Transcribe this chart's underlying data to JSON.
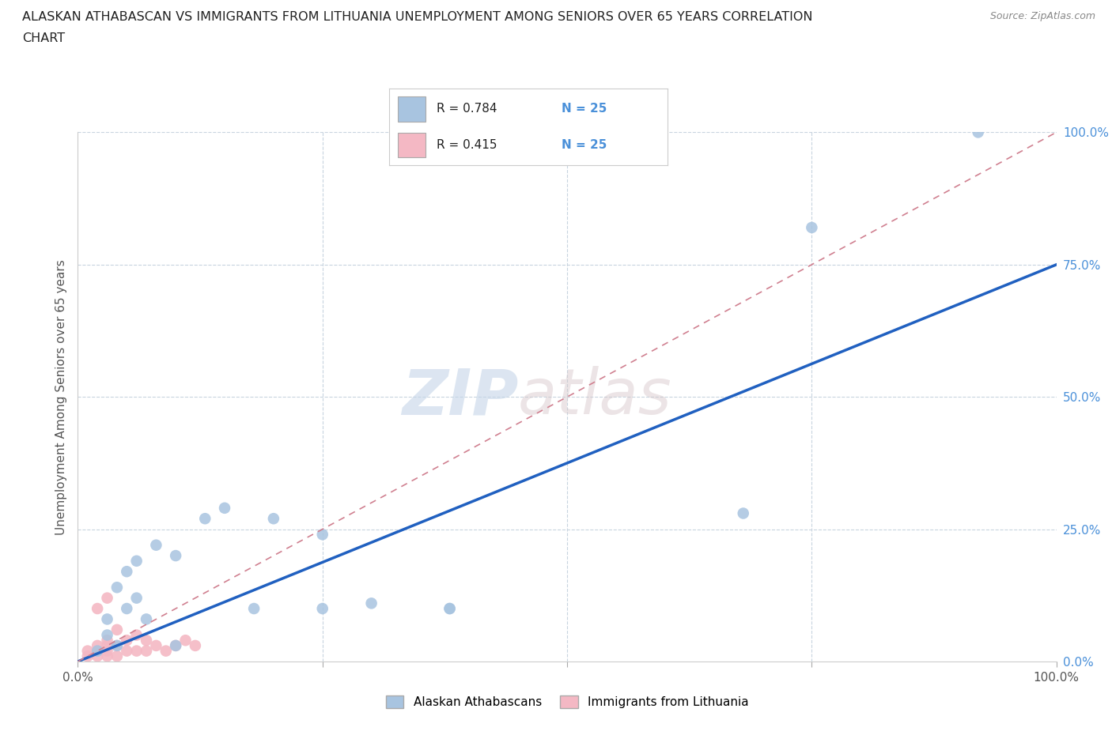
{
  "title_line1": "ALASKAN ATHABASCAN VS IMMIGRANTS FROM LITHUANIA UNEMPLOYMENT AMONG SENIORS OVER 65 YEARS CORRELATION",
  "title_line2": "CHART",
  "source": "Source: ZipAtlas.com",
  "ylabel": "Unemployment Among Seniors over 65 years",
  "y_tick_labels": [
    "0.0%",
    "25.0%",
    "50.0%",
    "75.0%",
    "100.0%"
  ],
  "y_tick_values": [
    0,
    0.25,
    0.5,
    0.75,
    1.0
  ],
  "xlim": [
    0,
    1.0
  ],
  "ylim": [
    0,
    1.0
  ],
  "blue_color": "#a8c4e0",
  "pink_color": "#f4b8c4",
  "blue_line_color": "#2060c0",
  "pink_line_color": "#d08090",
  "watermark_zip": "ZIP",
  "watermark_atlas": "atlas",
  "legend_R1": "R = 0.784",
  "legend_N1": "N = 25",
  "legend_R2": "R = 0.415",
  "legend_N2": "N = 25",
  "legend_label1": "Alaskan Athabascans",
  "legend_label2": "Immigrants from Lithuania",
  "blue_scatter_x": [
    0.02,
    0.03,
    0.03,
    0.04,
    0.04,
    0.05,
    0.05,
    0.06,
    0.06,
    0.07,
    0.08,
    0.1,
    0.1,
    0.13,
    0.15,
    0.18,
    0.2,
    0.25,
    0.25,
    0.3,
    0.38,
    0.38,
    0.68,
    0.75,
    0.92
  ],
  "blue_scatter_y": [
    0.02,
    0.05,
    0.08,
    0.03,
    0.14,
    0.1,
    0.17,
    0.12,
    0.19,
    0.08,
    0.22,
    0.03,
    0.2,
    0.27,
    0.29,
    0.1,
    0.27,
    0.24,
    0.1,
    0.11,
    0.1,
    0.1,
    0.28,
    0.82,
    1.0
  ],
  "pink_scatter_x": [
    0.01,
    0.01,
    0.02,
    0.02,
    0.02,
    0.02,
    0.03,
    0.03,
    0.03,
    0.03,
    0.03,
    0.04,
    0.04,
    0.04,
    0.05,
    0.05,
    0.06,
    0.06,
    0.07,
    0.07,
    0.08,
    0.09,
    0.1,
    0.11,
    0.12
  ],
  "pink_scatter_y": [
    0.01,
    0.02,
    0.01,
    0.02,
    0.03,
    0.1,
    0.01,
    0.02,
    0.03,
    0.04,
    0.12,
    0.01,
    0.03,
    0.06,
    0.02,
    0.04,
    0.02,
    0.05,
    0.02,
    0.04,
    0.03,
    0.02,
    0.03,
    0.04,
    0.03
  ],
  "blue_line_x0": 0.0,
  "blue_line_y0": 0.0,
  "blue_line_x1": 1.0,
  "blue_line_y1": 0.75,
  "pink_line_x0": 0.0,
  "pink_line_y0": 0.0,
  "pink_line_x1": 1.0,
  "pink_line_y1": 1.0,
  "grid_color": "#c8d4df",
  "background_color": "#ffffff",
  "tick_label_color": "#4a90d9"
}
